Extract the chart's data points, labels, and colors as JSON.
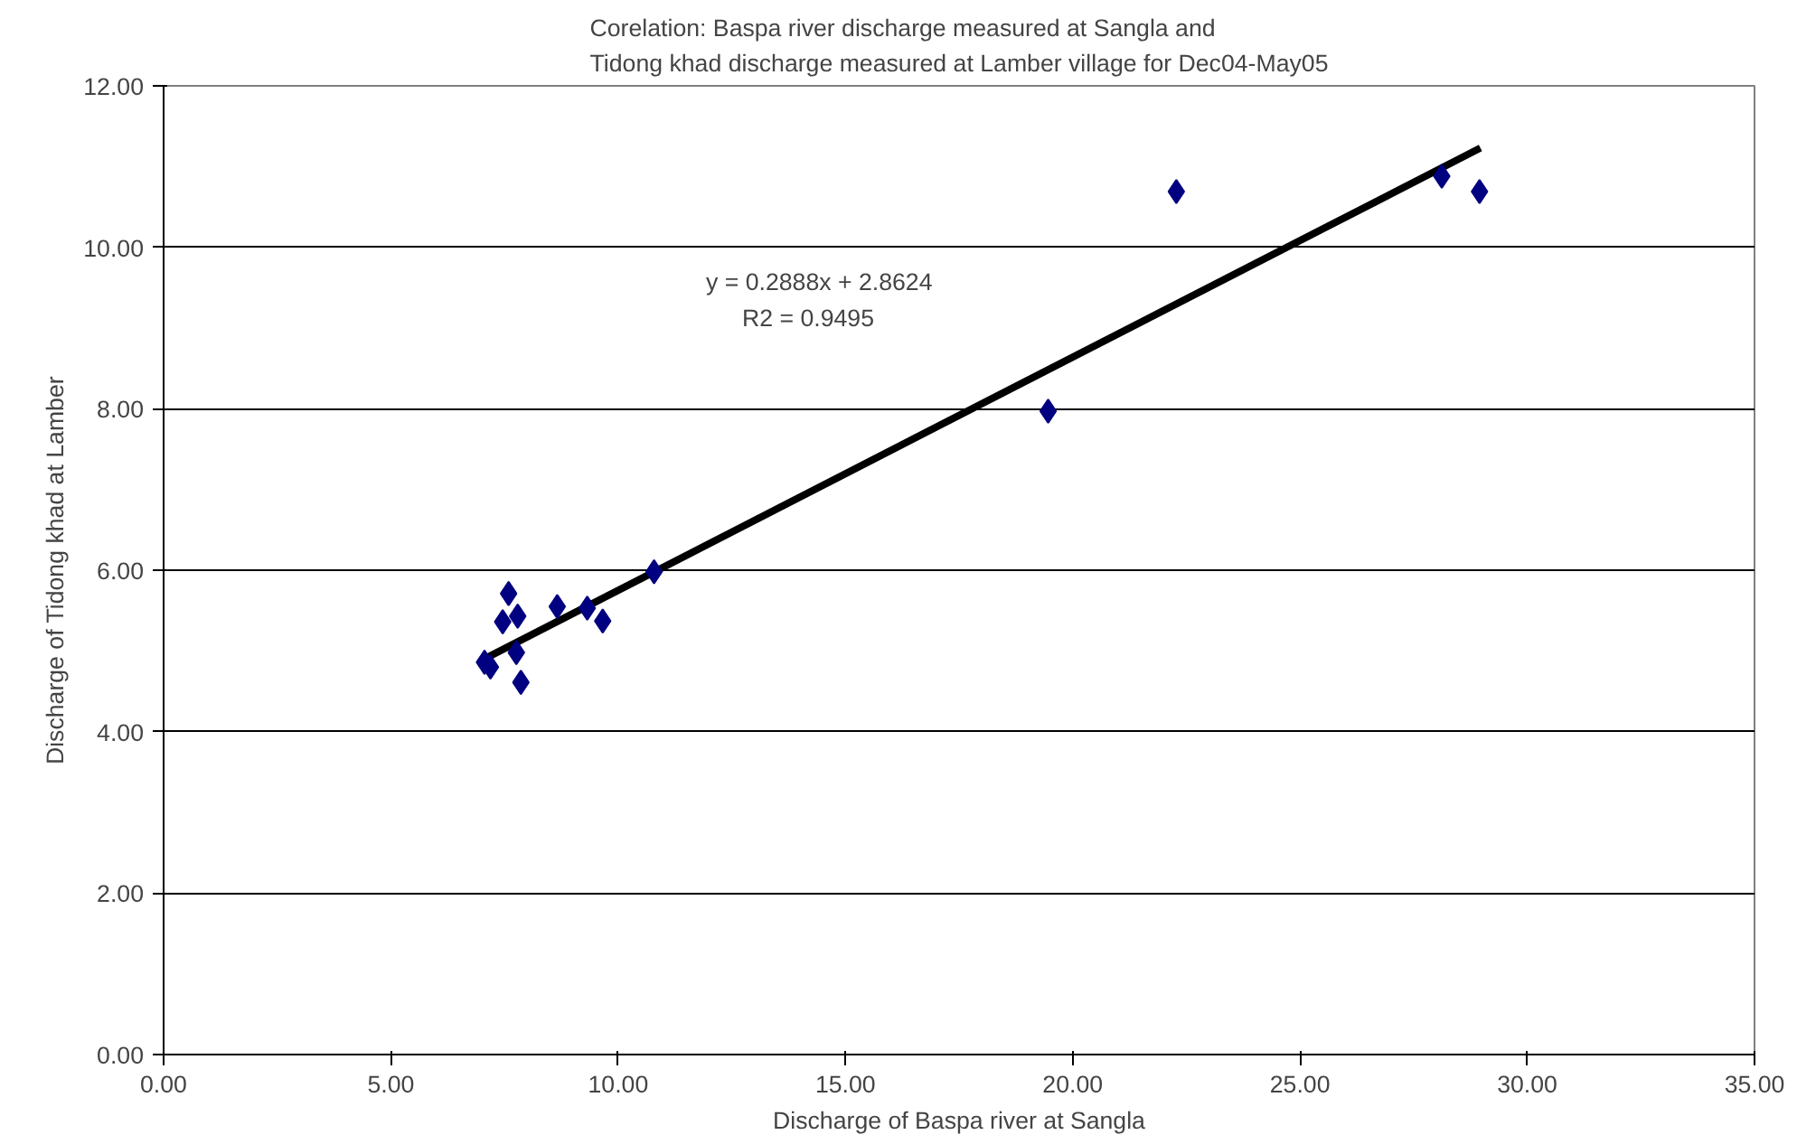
{
  "chart_data": {
    "type": "scatter",
    "title": "Corelation: Baspa river discharge measured at Sangla and\nTidong khad discharge measured at Lamber village for Dec04-May05",
    "xlabel": "Discharge of Baspa river at Sangla",
    "ylabel": "Discharge of Tidong khad at Lamber",
    "xlim": [
      0,
      35
    ],
    "xticks": [
      {
        "value": 0,
        "label": "0.00"
      },
      {
        "value": 5,
        "label": "5.00"
      },
      {
        "value": 10,
        "label": "10.00"
      },
      {
        "value": 15,
        "label": "15.00"
      },
      {
        "value": 20,
        "label": "20.00"
      },
      {
        "value": 25,
        "label": "25.00"
      },
      {
        "value": 30,
        "label": "30.00"
      },
      {
        "value": 35,
        "label": "35.00"
      }
    ],
    "ylim": [
      0,
      12
    ],
    "yticks": [
      {
        "value": 0,
        "label": "0.00"
      },
      {
        "value": 2,
        "label": "2.00"
      },
      {
        "value": 4,
        "label": "4.00"
      },
      {
        "value": 6,
        "label": "6.00"
      },
      {
        "value": 8,
        "label": "8.00"
      },
      {
        "value": 10,
        "label": "10.00"
      },
      {
        "value": 12,
        "label": "12.00"
      }
    ],
    "grid": "y",
    "annotations": [
      "y = 0.2888x + 2.8624",
      "R2 = 0.9495"
    ],
    "series": [
      {
        "marker": "diamond",
        "color": "#000080",
        "x": [
          7.06,
          7.19,
          7.59,
          7.46,
          7.79,
          7.76,
          7.86,
          8.66,
          9.32,
          9.66,
          10.79,
          19.46,
          22.28,
          28.12,
          28.95
        ],
        "values": [
          4.86,
          4.8,
          5.71,
          5.36,
          5.43,
          4.98,
          4.61,
          5.55,
          5.53,
          5.37,
          5.98,
          7.97,
          10.69,
          10.88,
          10.69
        ]
      },
      {
        "type": "line",
        "color": "#000000",
        "x": [
          7.02,
          28.97
        ],
        "values": [
          4.89,
          11.23
        ]
      }
    ]
  }
}
